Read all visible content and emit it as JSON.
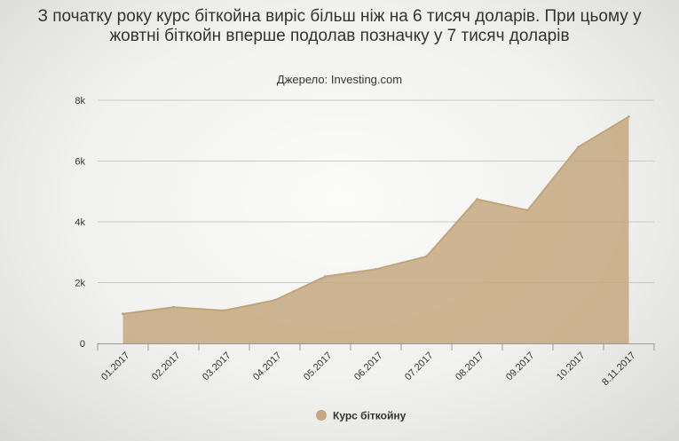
{
  "chart_data": {
    "type": "area",
    "title": "З початку року курс біткойна виріс більш ніж на 6 тисяч доларів. При цьому у жовтні біткойн вперше подолав позначку у 7 тисяч доларів",
    "subtitle": "Джерело: Investing.com",
    "categories": [
      "01.2017",
      "02.2017",
      "03.2017",
      "04.2017",
      "05.2017",
      "06.2017",
      "07.2017",
      "08.2017",
      "09.2017",
      "10.2017",
      "8.11.2017"
    ],
    "series": [
      {
        "name": "Курс біткойну",
        "values": [
          970,
          1190,
          1080,
          1420,
          2200,
          2440,
          2860,
          4740,
          4380,
          6460,
          7460
        ]
      }
    ],
    "ylim": [
      0,
      8000
    ],
    "yticks": [
      0,
      2000,
      4000,
      6000,
      8000
    ],
    "ytick_labels": [
      "0",
      "2k",
      "4k",
      "6k",
      "8k"
    ],
    "xlabel": "",
    "ylabel": "",
    "grid": true,
    "legend": "bottom-center",
    "colors": {
      "fill": "#c5a880",
      "stroke": "#c2a47a",
      "grid": "#c8c8c8",
      "text": "#333333"
    }
  }
}
